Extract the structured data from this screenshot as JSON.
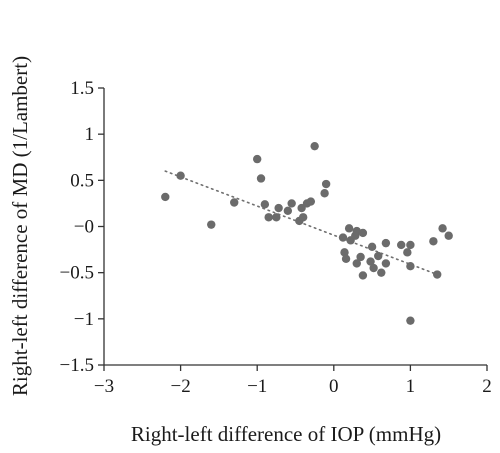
{
  "chart_data": {
    "type": "scatter",
    "title": "",
    "xlabel": "Right-left difference of IOP (mmHg)",
    "ylabel": "Right-left difference of MD (1/Lambert)",
    "xlim": [
      -3,
      2
    ],
    "ylim": [
      -1.5,
      1.5
    ],
    "x_ticks": [
      -3,
      -2,
      -1,
      0,
      1,
      2
    ],
    "x_tick_labels": [
      "−3",
      "−2",
      "−1",
      "0",
      "1",
      "2"
    ],
    "y_ticks": [
      1.5,
      1,
      0.5,
      0,
      -0.5,
      -1,
      -1.5
    ],
    "y_tick_labels": [
      "1.5",
      "1",
      "0.5",
      "−0",
      "−0.5",
      "−1",
      "−1.5"
    ],
    "grid": false,
    "legend": "none",
    "point_color": "#6b6b6b",
    "trendline": {
      "style": "dotted",
      "color": "#707070",
      "x": [
        -2.2,
        1.35
      ],
      "y": [
        0.6,
        -0.52
      ]
    },
    "points": [
      {
        "x": -2.2,
        "y": 0.32
      },
      {
        "x": -2.0,
        "y": 0.55
      },
      {
        "x": -1.6,
        "y": 0.02
      },
      {
        "x": -1.3,
        "y": 0.26
      },
      {
        "x": -1.0,
        "y": 0.73
      },
      {
        "x": -0.95,
        "y": 0.52
      },
      {
        "x": -0.9,
        "y": 0.24
      },
      {
        "x": -0.85,
        "y": 0.1
      },
      {
        "x": -0.75,
        "y": 0.1
      },
      {
        "x": -0.72,
        "y": 0.2
      },
      {
        "x": -0.6,
        "y": 0.17
      },
      {
        "x": -0.55,
        "y": 0.25
      },
      {
        "x": -0.45,
        "y": 0.06
      },
      {
        "x": -0.42,
        "y": 0.2
      },
      {
        "x": -0.4,
        "y": 0.1
      },
      {
        "x": -0.35,
        "y": 0.25
      },
      {
        "x": -0.3,
        "y": 0.27
      },
      {
        "x": -0.25,
        "y": 0.87
      },
      {
        "x": -0.12,
        "y": 0.36
      },
      {
        "x": -0.1,
        "y": 0.46
      },
      {
        "x": 0.12,
        "y": -0.12
      },
      {
        "x": 0.14,
        "y": -0.28
      },
      {
        "x": 0.16,
        "y": -0.35
      },
      {
        "x": 0.2,
        "y": -0.02
      },
      {
        "x": 0.22,
        "y": -0.15
      },
      {
        "x": 0.28,
        "y": -0.1
      },
      {
        "x": 0.3,
        "y": -0.4
      },
      {
        "x": 0.3,
        "y": -0.05
      },
      {
        "x": 0.35,
        "y": -0.33
      },
      {
        "x": 0.38,
        "y": -0.53
      },
      {
        "x": 0.38,
        "y": -0.07
      },
      {
        "x": 0.48,
        "y": -0.38
      },
      {
        "x": 0.5,
        "y": -0.22
      },
      {
        "x": 0.52,
        "y": -0.45
      },
      {
        "x": 0.58,
        "y": -0.32
      },
      {
        "x": 0.62,
        "y": -0.5
      },
      {
        "x": 0.68,
        "y": -0.4
      },
      {
        "x": 0.68,
        "y": -0.18
      },
      {
        "x": 0.88,
        "y": -0.2
      },
      {
        "x": 0.96,
        "y": -0.28
      },
      {
        "x": 1.0,
        "y": -0.2
      },
      {
        "x": 1.0,
        "y": -0.43
      },
      {
        "x": 1.0,
        "y": -1.02
      },
      {
        "x": 1.3,
        "y": -0.16
      },
      {
        "x": 1.35,
        "y": -0.52
      },
      {
        "x": 1.42,
        "y": -0.02
      },
      {
        "x": 1.5,
        "y": -0.1
      }
    ]
  }
}
